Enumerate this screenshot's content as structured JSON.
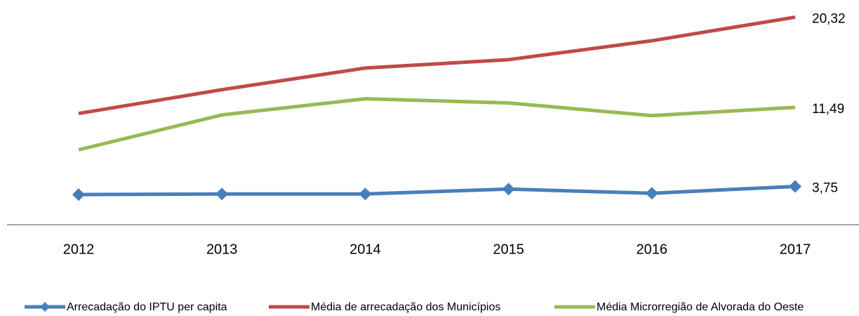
{
  "chart_data": {
    "type": "line",
    "categories": [
      "2012",
      "2013",
      "2014",
      "2015",
      "2016",
      "2017"
    ],
    "series": [
      {
        "name": "Arrecadação do IPTU per capita",
        "color": "#4a7ebb",
        "marker": "diamond",
        "values": [
          2.95,
          3.01,
          3.01,
          3.49,
          3.08,
          3.75
        ],
        "value_labels": [
          null,
          null,
          null,
          null,
          null,
          "3,75"
        ]
      },
      {
        "name": "Média de arrecadação dos Municípios",
        "color": "#be4b48",
        "values": [
          10.89,
          13.22,
          15.34,
          16.16,
          18.01,
          20.32
        ],
        "value_labels": [
          null,
          null,
          null,
          null,
          null,
          "20,32"
        ]
      },
      {
        "name": "Média Microrregião de Alvorada do Oeste",
        "color": "#98b954",
        "values": [
          7.33,
          10.75,
          12.33,
          11.92,
          10.68,
          11.49
        ],
        "value_labels": [
          null,
          null,
          null,
          null,
          null,
          "11,49"
        ]
      }
    ],
    "ylim": [
      0,
      22
    ],
    "legend": "bottom"
  }
}
